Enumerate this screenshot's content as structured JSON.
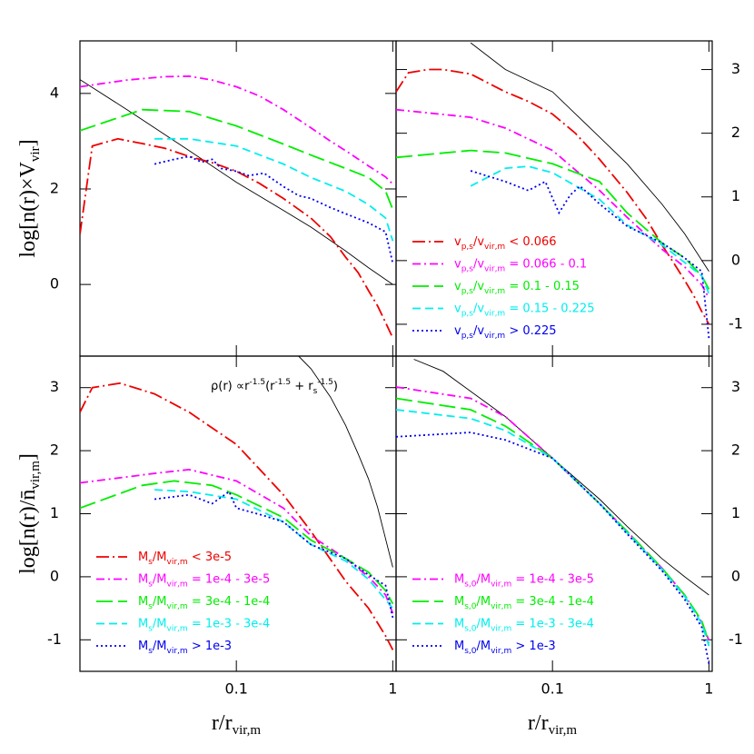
{
  "chart_data": [
    {
      "type": "line",
      "log_x": true,
      "xlim": [
        0.01,
        1.05
      ],
      "ylim": [
        -1.5,
        5.1
      ],
      "xticks": [
        0.1,
        1
      ],
      "yticks": [
        0,
        2,
        4
      ],
      "xtick_labels": false,
      "yaxis_side": "left",
      "ylabel": [
        "log[n(r)×V",
        "vir",
        "]"
      ],
      "series": [
        {
          "color": "#000000",
          "dash": "solid",
          "x": [
            0.01,
            0.02,
            0.05,
            0.1,
            0.2,
            0.3,
            0.5,
            0.7,
            1.0
          ],
          "values": [
            4.29,
            3.66,
            2.8,
            2.14,
            1.55,
            1.2,
            0.7,
            0.35,
            0.0
          ]
        },
        {
          "color": "#ee0000",
          "dash": "dashdot",
          "x": [
            0.01,
            0.012,
            0.0175,
            0.025,
            0.035,
            0.05,
            0.07,
            0.1,
            0.14,
            0.2,
            0.3,
            0.4,
            0.5,
            0.6,
            0.7,
            0.8,
            0.9,
            1.0
          ],
          "values": [
            1.05,
            2.9,
            3.05,
            2.95,
            2.85,
            2.68,
            2.55,
            2.37,
            2.12,
            1.8,
            1.39,
            1.0,
            0.57,
            0.25,
            -0.13,
            -0.45,
            -0.8,
            -1.12
          ]
        },
        {
          "color": "#ff00ff",
          "dash": "dashdot2",
          "x": [
            0.01,
            0.02,
            0.035,
            0.05,
            0.07,
            0.1,
            0.14,
            0.2,
            0.3,
            0.4,
            0.5,
            0.7,
            0.9,
            1.0
          ],
          "values": [
            4.14,
            4.28,
            4.35,
            4.36,
            4.28,
            4.14,
            3.95,
            3.66,
            3.28,
            3.0,
            2.8,
            2.48,
            2.25,
            2.1
          ]
        },
        {
          "color": "#00ee00",
          "dash": "longdash",
          "x": [
            0.01,
            0.025,
            0.05,
            0.1,
            0.2,
            0.3,
            0.5,
            0.7,
            0.9,
            1.0
          ],
          "values": [
            3.22,
            3.66,
            3.62,
            3.32,
            2.94,
            2.71,
            2.43,
            2.24,
            1.95,
            1.57
          ]
        },
        {
          "color": "#00eeee",
          "dash": "dash",
          "x": [
            0.03,
            0.05,
            0.1,
            0.2,
            0.3,
            0.5,
            0.7,
            0.9,
            1.0
          ],
          "values": [
            3.05,
            3.05,
            2.9,
            2.52,
            2.24,
            1.95,
            1.67,
            1.39,
            0.91
          ]
        },
        {
          "color": "#0000ee",
          "dash": "dot",
          "x": [
            0.03,
            0.04,
            0.05,
            0.06,
            0.07,
            0.08,
            0.1,
            0.12,
            0.15,
            0.2,
            0.25,
            0.3,
            0.4,
            0.5,
            0.7,
            0.9,
            1.0
          ],
          "values": [
            2.52,
            2.62,
            2.68,
            2.56,
            2.62,
            2.43,
            2.37,
            2.28,
            2.33,
            2.05,
            1.86,
            1.8,
            1.61,
            1.48,
            1.29,
            1.1,
            0.44
          ]
        }
      ]
    },
    {
      "type": "line",
      "log_x": true,
      "xlim": [
        0.01,
        1.05
      ],
      "ylim": [
        -1.5,
        3.45
      ],
      "xticks": [
        0.1,
        1
      ],
      "yticks": [
        -1,
        0,
        1,
        2,
        3
      ],
      "xtick_labels": false,
      "yaxis_side": "right",
      "series": [
        {
          "color": "#000000",
          "dash": "solid",
          "x": [
            0.03,
            0.05,
            0.1,
            0.2,
            0.3,
            0.5,
            0.7,
            1.0
          ],
          "values": [
            3.42,
            3.0,
            2.65,
            1.94,
            1.52,
            0.89,
            0.42,
            -0.17
          ]
        },
        {
          "name": [
            "v",
            "p,s",
            "/v",
            "vir,m",
            "  <  0.066"
          ],
          "color": "#ee0000",
          "dash": "dashdot",
          "x": [
            0.01,
            0.012,
            0.016,
            0.02,
            0.03,
            0.05,
            0.07,
            0.1,
            0.14,
            0.2,
            0.3,
            0.4,
            0.5,
            0.6,
            0.7,
            0.8,
            0.9,
            1.0
          ],
          "values": [
            2.65,
            2.95,
            3.0,
            3.0,
            2.93,
            2.65,
            2.5,
            2.3,
            2.0,
            1.59,
            1.07,
            0.65,
            0.25,
            -0.05,
            -0.31,
            -0.55,
            -0.8,
            -1.0
          ]
        },
        {
          "name": [
            "v",
            "p,s",
            "/v",
            "vir,m",
            "  =  0.066 - 0.1"
          ],
          "color": "#ff00ff",
          "dash": "dashdot2",
          "x": [
            0.01,
            0.03,
            0.05,
            0.1,
            0.2,
            0.3,
            0.5,
            0.7,
            0.9,
            1.0
          ],
          "values": [
            2.37,
            2.25,
            2.08,
            1.73,
            1.1,
            0.68,
            0.18,
            -0.1,
            -0.38,
            -0.59
          ]
        },
        {
          "name": [
            "v",
            "p,s",
            "/v",
            "vir,m",
            "  =  0.1 - 0.15"
          ],
          "color": "#00ee00",
          "dash": "longdash",
          "x": [
            0.01,
            0.03,
            0.05,
            0.1,
            0.2,
            0.3,
            0.5,
            0.7,
            0.9,
            1.0
          ],
          "values": [
            1.62,
            1.73,
            1.69,
            1.52,
            1.24,
            0.75,
            0.28,
            0.04,
            -0.24,
            -0.45
          ]
        },
        {
          "name": [
            "v",
            "p,s",
            "/v",
            "vir,m",
            "  =  0.15 - 0.225"
          ],
          "color": "#00eeee",
          "dash": "dash",
          "x": [
            0.03,
            0.05,
            0.07,
            0.1,
            0.2,
            0.3,
            0.5,
            0.7,
            0.9,
            1.0
          ],
          "values": [
            1.17,
            1.45,
            1.48,
            1.38,
            0.96,
            0.56,
            0.25,
            -0.03,
            -0.24,
            -0.52
          ]
        },
        {
          "name": [
            "v",
            "p,s",
            "/v",
            "vir,m",
            "  >  0.225"
          ],
          "color": "#0000ee",
          "dash": "dot",
          "x": [
            0.03,
            0.05,
            0.07,
            0.09,
            0.11,
            0.13,
            0.15,
            0.2,
            0.3,
            0.5,
            0.7,
            0.9,
            1.0
          ],
          "values": [
            1.41,
            1.24,
            1.1,
            1.24,
            0.75,
            1.03,
            1.17,
            0.89,
            0.54,
            0.28,
            0.04,
            -0.17,
            -1.22
          ]
        }
      ]
    },
    {
      "type": "line",
      "log_x": true,
      "xlim": [
        0.01,
        1.05
      ],
      "ylim": [
        -1.5,
        3.5
      ],
      "xticks": [
        0.1,
        1
      ],
      "yticks": [
        -1,
        0,
        1,
        2,
        3
      ],
      "xtick_labels": true,
      "yaxis_side": "left",
      "ylabel": [
        "log[n(r)/n̄",
        "vir,m",
        "]"
      ],
      "xlabel": [
        "r/r",
        "vir,m"
      ],
      "annotation": [
        "ρ(r) ∝r",
        "-1.5",
        "(r",
        "-1.5",
        " + r",
        "s",
        "-1.5",
        ")"
      ],
      "series": [
        {
          "color": "#000000",
          "dash": "solid",
          "x": [
            0.25,
            0.3,
            0.4,
            0.5,
            0.6,
            0.7,
            0.8,
            0.9,
            1.0
          ],
          "values": [
            3.5,
            3.3,
            2.85,
            2.4,
            1.95,
            1.55,
            1.1,
            0.6,
            0.15
          ]
        },
        {
          "name": [
            "M",
            "s",
            "/M",
            "vir,m",
            "  <  3e-5"
          ],
          "color": "#ee0000",
          "dash": "dashdot",
          "x": [
            0.01,
            0.012,
            0.018,
            0.03,
            0.05,
            0.1,
            0.2,
            0.3,
            0.5,
            0.7,
            0.9,
            1.0
          ],
          "values": [
            2.61,
            3.0,
            3.07,
            2.9,
            2.61,
            2.1,
            1.3,
            0.72,
            -0.07,
            -0.5,
            -0.94,
            -1.16
          ]
        },
        {
          "name": [
            "M",
            "s",
            "/M",
            "vir,m",
            "  =  1e-4 - 3e-5"
          ],
          "color": "#ff00ff",
          "dash": "dashdot2",
          "x": [
            0.01,
            0.03,
            0.05,
            0.1,
            0.2,
            0.3,
            0.5,
            0.7,
            0.9,
            1.0
          ],
          "values": [
            1.49,
            1.64,
            1.7,
            1.52,
            1.09,
            0.65,
            0.29,
            0.0,
            -0.29,
            -0.58
          ]
        },
        {
          "name": [
            "M",
            "s",
            "/M",
            "vir,m",
            "  =  3e-4 - 1e-4"
          ],
          "color": "#00ee00",
          "dash": "longdash",
          "x": [
            0.01,
            0.025,
            0.04,
            0.07,
            0.1,
            0.2,
            0.3,
            0.5,
            0.7,
            0.9,
            1.0
          ],
          "values": [
            1.09,
            1.45,
            1.52,
            1.45,
            1.3,
            0.94,
            0.58,
            0.29,
            0.07,
            -0.22,
            -0.43
          ]
        },
        {
          "name": [
            "M",
            "s",
            "/M",
            "vir,m",
            "  =  1e-3 - 3e-4"
          ],
          "color": "#00eeee",
          "dash": "dash",
          "x": [
            0.03,
            0.05,
            0.1,
            0.2,
            0.3,
            0.5,
            0.7,
            1.0
          ],
          "values": [
            1.38,
            1.35,
            1.23,
            0.87,
            0.51,
            0.25,
            -0.04,
            -0.5
          ]
        },
        {
          "name": [
            "M",
            "s",
            "/M",
            "vir,m",
            "  >  1e-3"
          ],
          "color": "#0000ee",
          "dash": "dot",
          "x": [
            0.03,
            0.05,
            0.07,
            0.09,
            0.1,
            0.15,
            0.2,
            0.3,
            0.5,
            0.7,
            0.9,
            1.0
          ],
          "values": [
            1.23,
            1.3,
            1.16,
            1.35,
            1.09,
            0.97,
            0.87,
            0.51,
            0.29,
            0.03,
            -0.14,
            -0.65
          ]
        }
      ]
    },
    {
      "type": "line",
      "log_x": true,
      "xlim": [
        0.01,
        1.05
      ],
      "ylim": [
        -1.5,
        3.5
      ],
      "xticks": [
        0.1,
        1
      ],
      "yticks": [
        -1,
        0,
        1,
        2,
        3
      ],
      "xtick_labels": true,
      "yaxis_side": "right",
      "xlabel": [
        "r/r",
        "vir,m"
      ],
      "series": [
        {
          "color": "#000000",
          "dash": "solid",
          "x": [
            0.013,
            0.02,
            0.05,
            0.1,
            0.2,
            0.3,
            0.5,
            0.7,
            1.0
          ],
          "values": [
            3.45,
            3.26,
            2.54,
            1.88,
            1.23,
            0.8,
            0.29,
            0.0,
            -0.29
          ]
        },
        {
          "name": [
            "M",
            "s,0",
            "/M",
            "vir,m",
            "  =  1e-4 - 3e-5"
          ],
          "color": "#ff00ff",
          "dash": "dashdot2",
          "x": [
            0.01,
            0.03,
            0.05,
            0.1,
            0.2,
            0.3,
            0.5,
            0.7,
            0.9,
            1.0
          ],
          "values": [
            3.01,
            2.83,
            2.54,
            1.88,
            1.16,
            0.72,
            0.14,
            -0.29,
            -0.72,
            -1.01
          ]
        },
        {
          "name": [
            "M",
            "s,0",
            "/M",
            "vir,m",
            "  =  3e-4 - 1e-4"
          ],
          "color": "#00ee00",
          "dash": "longdash",
          "x": [
            0.01,
            0.03,
            0.05,
            0.1,
            0.2,
            0.3,
            0.5,
            0.7,
            0.9,
            1.0
          ],
          "values": [
            2.83,
            2.65,
            2.39,
            1.88,
            1.16,
            0.72,
            0.14,
            -0.29,
            -0.7,
            -1.05
          ]
        },
        {
          "name": [
            "M",
            "s,0",
            "/M",
            "vir,m",
            "  =  1e-3 - 3e-4"
          ],
          "color": "#00eeee",
          "dash": "dash",
          "x": [
            0.01,
            0.03,
            0.05,
            0.1,
            0.2,
            0.3,
            0.5,
            0.7,
            0.9,
            1.0
          ],
          "values": [
            2.65,
            2.51,
            2.32,
            1.88,
            1.16,
            0.7,
            0.12,
            -0.31,
            -0.74,
            -1.1
          ]
        },
        {
          "name": [
            "M",
            "s,0",
            "/M",
            "vir,m",
            "  >  1e-3"
          ],
          "color": "#0000ee",
          "dash": "dot",
          "x": [
            0.01,
            0.03,
            0.05,
            0.1,
            0.2,
            0.3,
            0.5,
            0.7,
            0.9,
            1.0
          ],
          "values": [
            2.22,
            2.29,
            2.17,
            1.88,
            1.16,
            0.68,
            0.1,
            -0.36,
            -0.8,
            -1.38
          ]
        }
      ]
    }
  ]
}
